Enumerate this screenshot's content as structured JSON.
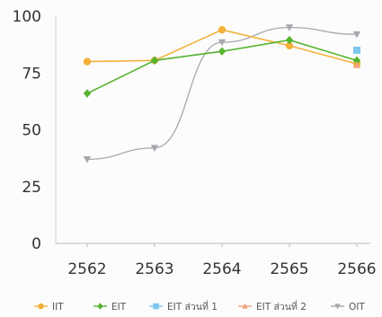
{
  "chart_data": {
    "type": "line",
    "title": "",
    "xlabel": "",
    "ylabel": "",
    "categories": [
      "2562",
      "2563",
      "2564",
      "2565",
      "2566"
    ],
    "ylim": [
      0,
      100
    ],
    "yticks": [
      0,
      25,
      50,
      75,
      100
    ],
    "grid": false,
    "legend_position": "bottom",
    "series": [
      {
        "name": "IIT",
        "color": "#f2b13a",
        "marker": "circle",
        "smooth": false,
        "values": [
          80,
          80.5,
          94,
          87,
          79
        ]
      },
      {
        "name": "EIT",
        "color": "#57b431",
        "marker": "diamond",
        "smooth": false,
        "values": [
          66,
          80.5,
          84.5,
          89.5,
          80.5
        ]
      },
      {
        "name": "EIT ส่วนที่ 1",
        "color": "#7ec7ec",
        "marker": "square",
        "smooth": false,
        "values": [
          null,
          null,
          null,
          null,
          85
        ]
      },
      {
        "name": "EIT ส่วนที่ 2",
        "color": "#f4a47a",
        "marker": "triangle-up",
        "smooth": false,
        "values": [
          null,
          null,
          null,
          null,
          78.5
        ]
      },
      {
        "name": "OIT",
        "color": "#a7a7ad",
        "marker": "triangle-down",
        "smooth": true,
        "values": [
          37,
          42,
          88.5,
          95,
          92
        ]
      }
    ]
  }
}
